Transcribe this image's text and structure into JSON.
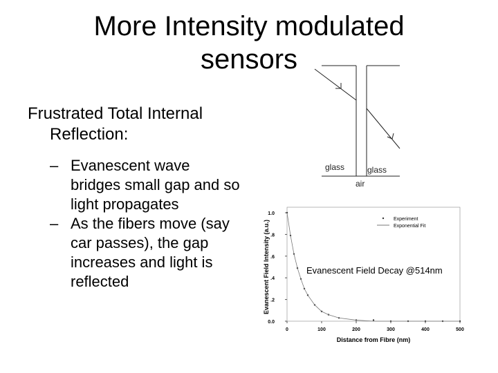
{
  "slide": {
    "title_lines": [
      "More Intensity modulated",
      "sensors"
    ],
    "bullet": {
      "text": "Frustrated Total Internal Reflection:",
      "sub_marker": "–",
      "sub_bullets": [
        "Evanescent wave bridges small gap and so light propagates",
        "As the fibers move (say car passes), the gap increases and light is reflected"
      ]
    }
  },
  "diagram": {
    "labels": [
      "glass",
      "glass",
      "air"
    ]
  },
  "chart_data": {
    "type": "scatter",
    "annotation": "Evanescent Field Decay @514nm",
    "x_label": "Distance from Fibre (nm)",
    "y_label": "Evanescent Field Intensity (a.u.)",
    "xlim": [
      0,
      500
    ],
    "ylim": [
      0,
      1.0
    ],
    "xticks": [
      0,
      100,
      200,
      300,
      400,
      500
    ],
    "yticks": [
      {
        "value": 0,
        "label": "0.0"
      },
      {
        "value": 0.2,
        "label": ".2"
      },
      {
        "value": 0.4,
        "label": ".4"
      },
      {
        "value": 0.6,
        "label": ".6"
      },
      {
        "value": 0.8,
        "label": ".8"
      },
      {
        "value": 1.0,
        "label": "1.0"
      }
    ],
    "legend": "upper right",
    "x": [
      0,
      10,
      20,
      30,
      40,
      50,
      60,
      80,
      100,
      120,
      150,
      200,
      250,
      300,
      350,
      400,
      450,
      500
    ],
    "series": [
      {
        "name": "Experiment",
        "style": "dots",
        "color": "#333333",
        "values": [
          1.0,
          0.79,
          0.62,
          0.49,
          0.39,
          0.3,
          0.24,
          0.15,
          0.09,
          0.06,
          0.03,
          0.01,
          0.01,
          0.0,
          0.0,
          0.0,
          0.0,
          0.0
        ]
      },
      {
        "name": "Exponential Fit",
        "style": "line",
        "color": "#777777",
        "values": [
          1.0,
          0.79,
          0.62,
          0.49,
          0.39,
          0.3,
          0.24,
          0.15,
          0.09,
          0.06,
          0.03,
          0.01,
          0.0,
          0.0,
          0.0,
          0.0,
          0.0,
          0.0
        ]
      }
    ]
  }
}
